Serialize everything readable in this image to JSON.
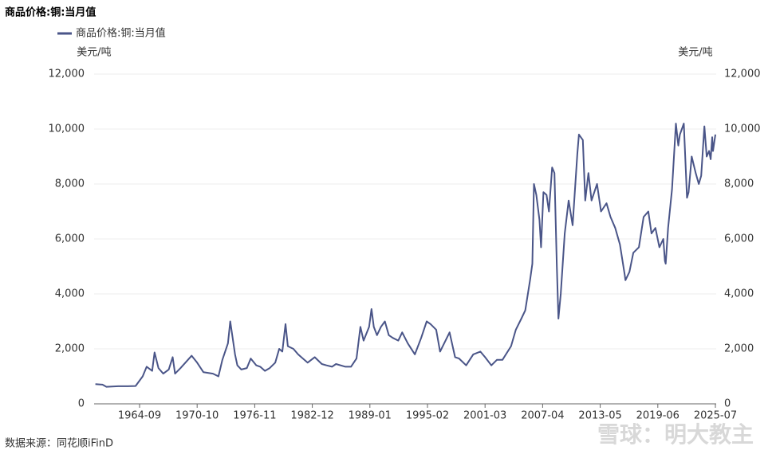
{
  "chart_data": {
    "type": "line",
    "title": "商品价格:铜:当月值",
    "y_label": "美元/吨",
    "y2_label": "美元/吨",
    "source": "数据来源：同花顺iFinD",
    "watermark": "雪球：明大教主",
    "legend": "top-left",
    "grid": true,
    "x": [
      "1960-01",
      "1960-10",
      "1961-03",
      "1962-06",
      "1963-06",
      "1964-04",
      "1965-01",
      "1965-06",
      "1966-01",
      "1966-04",
      "1966-09",
      "1967-03",
      "1967-10",
      "1968-03",
      "1968-06",
      "1969-01",
      "1970-03",
      "1970-10",
      "1971-06",
      "1972-06",
      "1973-01",
      "1973-06",
      "1974-01",
      "1974-04",
      "1974-10",
      "1975-01",
      "1975-06",
      "1976-01",
      "1976-06",
      "1977-01",
      "1977-06",
      "1977-12",
      "1978-06",
      "1979-01",
      "1979-06",
      "1979-10",
      "1980-02",
      "1980-05",
      "1980-12",
      "1981-06",
      "1982-06",
      "1983-03",
      "1983-12",
      "1984-06",
      "1985-01",
      "1985-06",
      "1986-06",
      "1987-01",
      "1987-08",
      "1988-01",
      "1988-05",
      "1988-12",
      "1989-03",
      "1989-06",
      "1989-10",
      "1990-03",
      "1990-08",
      "1991-01",
      "1991-06",
      "1992-01",
      "1992-06",
      "1993-01",
      "1993-10",
      "1994-06",
      "1995-01",
      "1995-06",
      "1996-01",
      "1996-06",
      "1997-06",
      "1998-01",
      "1998-06",
      "1999-03",
      "1999-12",
      "2000-09",
      "2001-03",
      "2001-11",
      "2002-06",
      "2003-01",
      "2003-12",
      "2004-06",
      "2005-01",
      "2005-06",
      "2005-12",
      "2006-03",
      "2006-05",
      "2006-08",
      "2006-12",
      "2007-02",
      "2007-05",
      "2007-09",
      "2007-12",
      "2008-04",
      "2008-07",
      "2008-10",
      "2008-12",
      "2009-03",
      "2009-08",
      "2010-01",
      "2010-06",
      "2010-12",
      "2011-02",
      "2011-07",
      "2011-10",
      "2012-02",
      "2012-06",
      "2013-01",
      "2013-06",
      "2014-01",
      "2014-06",
      "2014-12",
      "2015-06",
      "2015-12",
      "2016-01",
      "2016-06",
      "2016-11",
      "2017-06",
      "2017-12",
      "2018-06",
      "2018-10",
      "2019-03",
      "2019-08",
      "2020-01",
      "2020-03",
      "2020-04",
      "2020-07",
      "2020-12",
      "2021-05",
      "2021-08",
      "2021-10",
      "2022-03",
      "2022-07",
      "2022-09",
      "2023-01",
      "2023-06",
      "2023-10",
      "2024-01",
      "2024-05",
      "2024-08",
      "2024-11",
      "2025-01",
      "2025-03",
      "2025-04",
      "2025-07"
    ],
    "series": [
      {
        "name": "商品价格:铜:当月值",
        "color": "#4a5588",
        "values": [
          720,
          700,
          620,
          640,
          640,
          650,
          1000,
          1350,
          1200,
          1870,
          1300,
          1100,
          1250,
          1700,
          1100,
          1300,
          1750,
          1500,
          1150,
          1100,
          1000,
          1600,
          2200,
          3000,
          1800,
          1400,
          1250,
          1300,
          1650,
          1400,
          1350,
          1200,
          1300,
          1500,
          2000,
          1900,
          2900,
          2100,
          2000,
          1800,
          1500,
          1700,
          1450,
          1400,
          1350,
          1450,
          1350,
          1350,
          1650,
          2800,
          2300,
          2800,
          3450,
          2800,
          2500,
          2800,
          3000,
          2500,
          2400,
          2300,
          2600,
          2200,
          1800,
          2400,
          3000,
          2900,
          2700,
          1900,
          2600,
          1700,
          1650,
          1400,
          1800,
          1900,
          1700,
          1400,
          1600,
          1600,
          2100,
          2700,
          3100,
          3400,
          4500,
          5100,
          8000,
          7600,
          6700,
          5700,
          7700,
          7600,
          7000,
          8600,
          8400,
          5000,
          3100,
          4000,
          6200,
          7400,
          6500,
          9100,
          9800,
          9600,
          7400,
          8400,
          7400,
          8000,
          7000,
          7300,
          6800,
          6400,
          5800,
          4700,
          4500,
          4800,
          5500,
          5700,
          6800,
          7000,
          6200,
          6400,
          5700,
          6000,
          5200,
          5100,
          6400,
          7800,
          10200,
          9400,
          9800,
          10200,
          7500,
          7700,
          9000,
          8400,
          8000,
          8300,
          10100,
          9000,
          9200,
          8900,
          9700,
          9200,
          9800
        ]
      }
    ],
    "xticks": [
      "1964-09",
      "1970-10",
      "1976-11",
      "1982-12",
      "1989-01",
      "1995-02",
      "2001-03",
      "2007-04",
      "2013-05",
      "2019-06",
      "2025-07"
    ],
    "ylim": [
      0,
      12000
    ],
    "yticks": [
      0,
      {
        "value": 2000,
        "label": "2,000"
      },
      {
        "value": 4000,
        "label": "4,000"
      },
      {
        "value": 6000,
        "label": "6,000"
      },
      {
        "value": 8000,
        "label": "8,000"
      },
      {
        "value": 10000,
        "label": "10,000"
      },
      {
        "value": 12000,
        "label": "12,000"
      }
    ],
    "y2lim": [
      0,
      12000
    ],
    "y2ticks": [
      0,
      {
        "value": 2000,
        "label": "2,000"
      },
      {
        "value": 4000,
        "label": "4,000"
      },
      {
        "value": 6000,
        "label": "6,000"
      },
      {
        "value": 8000,
        "label": "8,000"
      },
      {
        "value": 10000,
        "label": "10,000"
      },
      {
        "value": 12000,
        "label": "12,000"
      }
    ]
  }
}
